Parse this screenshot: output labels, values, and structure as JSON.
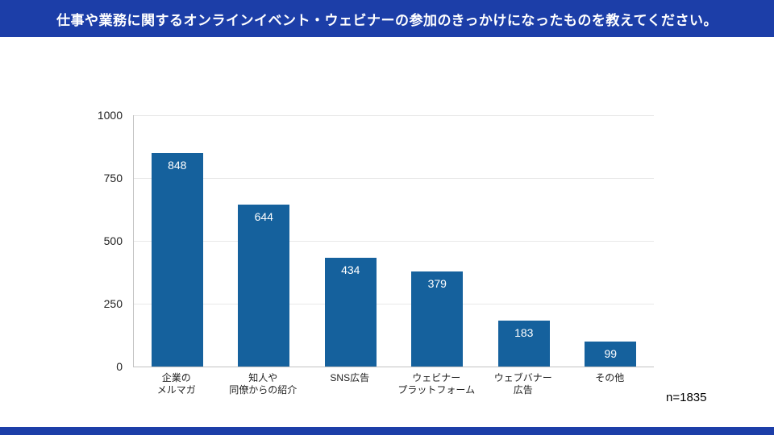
{
  "header": {
    "title": "仕事や業務に関するオンラインイベント・ウェビナーの参加のきっかけになったものを教えてください。"
  },
  "footer": {
    "sample_size": "n=1835"
  },
  "colors": {
    "banner": "#1c3ea8",
    "bar": "#15619d",
    "grid": "#e8e8e8",
    "axis": "#c2c2c2"
  },
  "chart_data": {
    "type": "bar",
    "title": "",
    "xlabel": "",
    "ylabel": "",
    "categories": [
      "企業の\nメルマガ",
      "知人や\n同僚からの紹介",
      "SNS広告",
      "ウェビナー\nプラットフォーム",
      "ウェブバナー\n広告",
      "その他"
    ],
    "values": [
      848,
      644,
      434,
      379,
      183,
      99
    ],
    "ylim": [
      0,
      1000
    ],
    "yticks": [
      0,
      250,
      500,
      750,
      1000
    ],
    "grid": true,
    "legend": "none",
    "value_labels": "inside-top"
  }
}
